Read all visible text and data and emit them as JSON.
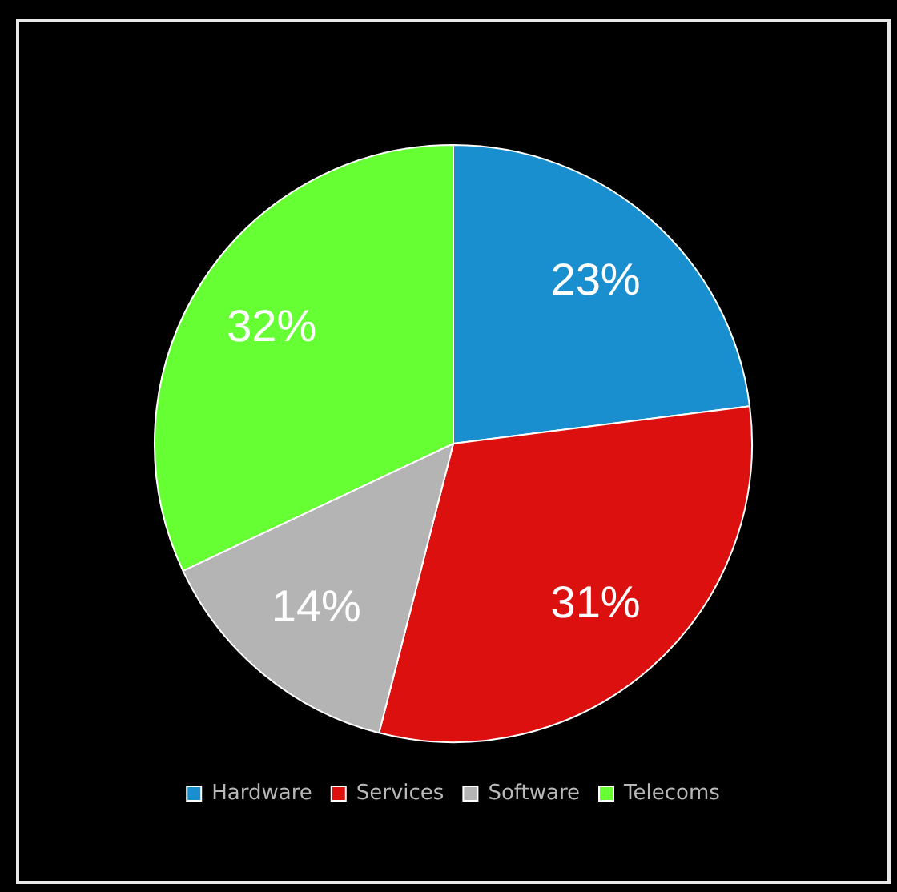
{
  "chart_data": {
    "type": "pie",
    "categories": [
      "Hardware",
      "Services",
      "Software",
      "Telecoms"
    ],
    "values": [
      23,
      31,
      14,
      32
    ],
    "colors": [
      "#1a8fd0",
      "#dd1010",
      "#b4b4b4",
      "#66ff33"
    ],
    "value_labels": [
      "23%",
      "31%",
      "14%",
      "32%"
    ],
    "legend": "bottom"
  }
}
